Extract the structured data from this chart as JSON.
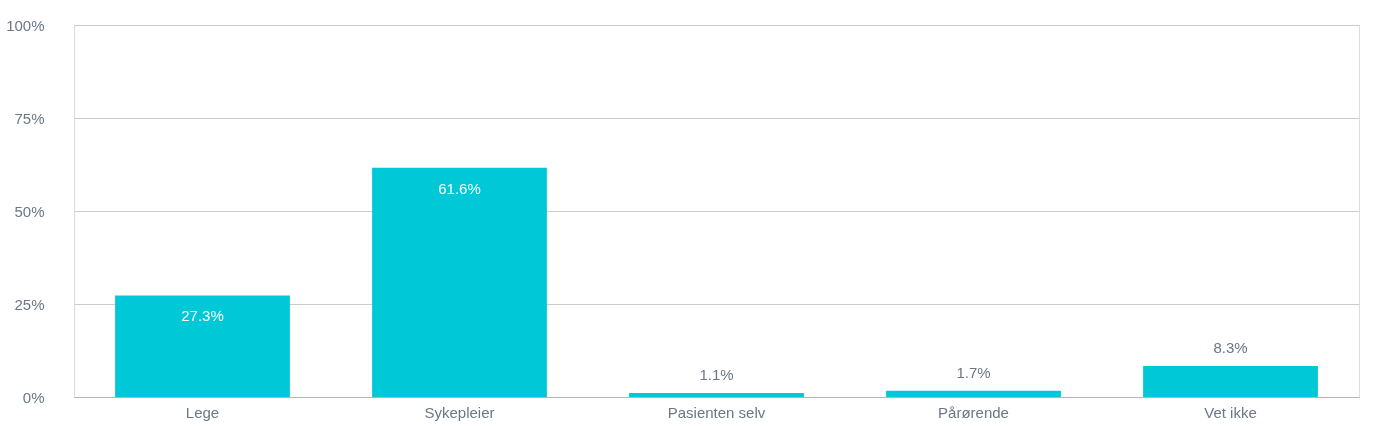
{
  "chart_data": {
    "type": "bar",
    "categories": [
      "Lege",
      "Sykepleier",
      "Pasienten selv",
      "Pårørende",
      "Vet ikke"
    ],
    "values": [
      27.3,
      61.6,
      1.1,
      1.7,
      8.3
    ],
    "value_labels": [
      "27.3%",
      "61.6%",
      "1.1%",
      "1.7%",
      "8.3%"
    ],
    "color": "#00c8d7",
    "ylim": [
      0,
      100
    ],
    "yticks": [
      {
        "value": 0,
        "label": "0%"
      },
      {
        "value": 25,
        "label": "25%"
      },
      {
        "value": 50,
        "label": "50%"
      },
      {
        "value": 75,
        "label": "75%"
      },
      {
        "value": 100,
        "label": "100%"
      }
    ],
    "grid": "y"
  }
}
